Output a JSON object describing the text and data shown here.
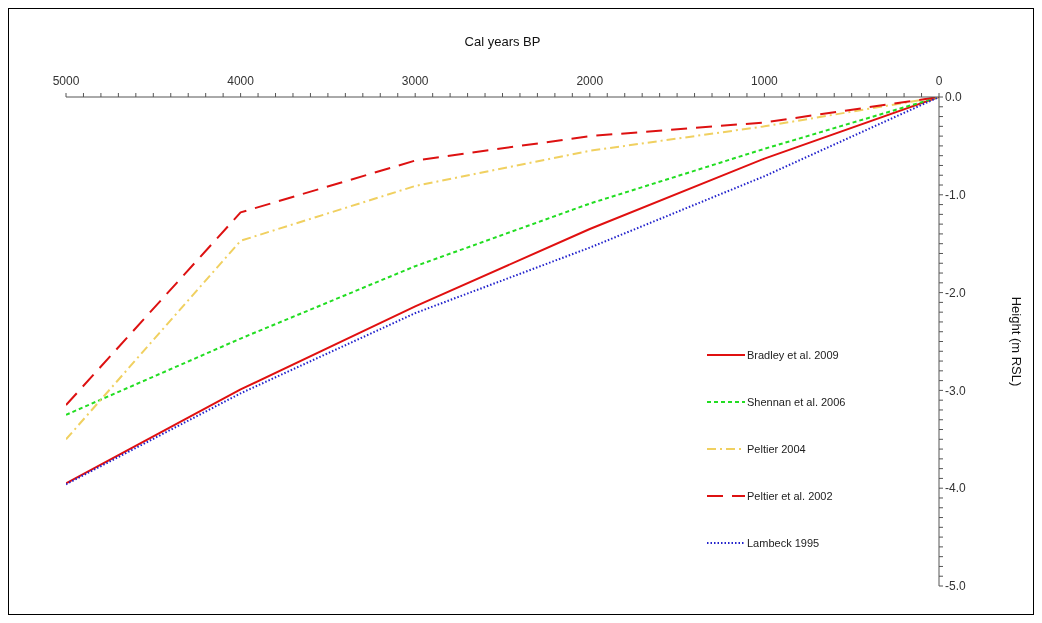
{
  "chart_data": {
    "type": "line",
    "xlabel": "Cal years BP",
    "ylabel": "Height (m RSL)",
    "x": [
      5000,
      4000,
      3000,
      2000,
      1000,
      0
    ],
    "series": [
      {
        "name": "Bradley et al. 2009",
        "color": "#e01010",
        "line_style": "solid",
        "values": [
          -3.95,
          -2.99,
          -2.14,
          -1.35,
          -0.63,
          0
        ]
      },
      {
        "name": "Shennan et al. 2006",
        "color": "#22dd22",
        "line_style": "dashed",
        "values": [
          -3.25,
          -2.47,
          -1.73,
          -1.09,
          -0.53,
          0
        ]
      },
      {
        "name": "Peltier 2004",
        "color": "#f0d060",
        "line_style": "dashdot",
        "values": [
          -3.5,
          -1.47,
          -0.91,
          -0.55,
          -0.3,
          0
        ]
      },
      {
        "name": "Peltier et al. 2002",
        "color": "#dd1111",
        "line_style": "longdash",
        "values": [
          -3.15,
          -1.18,
          -0.65,
          -0.4,
          -0.26,
          0
        ]
      },
      {
        "name": "Lambeck 1995",
        "color": "#2222cc",
        "line_style": "dotted",
        "values": [
          -3.96,
          -3.03,
          -2.21,
          -1.54,
          -0.81,
          0
        ]
      }
    ],
    "xlim": [
      5000,
      0
    ],
    "xticks": [
      5000,
      {
        "value": 4900,
        "label": null
      },
      {
        "value": 4800,
        "label": null
      },
      {
        "value": 4700,
        "label": null
      },
      {
        "value": 4600,
        "label": null
      },
      {
        "value": 4500,
        "label": null
      },
      {
        "value": 4400,
        "label": null
      },
      {
        "value": 4300,
        "label": null
      },
      {
        "value": 4200,
        "label": null
      },
      {
        "value": 4100,
        "label": null
      },
      4000,
      {
        "value": 3900,
        "label": null
      },
      {
        "value": 3800,
        "label": null
      },
      {
        "value": 3700,
        "label": null
      },
      {
        "value": 3600,
        "label": null
      },
      {
        "value": 3500,
        "label": null
      },
      {
        "value": 3400,
        "label": null
      },
      {
        "value": 3300,
        "label": null
      },
      {
        "value": 3200,
        "label": null
      },
      {
        "value": 3100,
        "label": null
      },
      3000,
      {
        "value": 2900,
        "label": null
      },
      {
        "value": 2800,
        "label": null
      },
      {
        "value": 2700,
        "label": null
      },
      {
        "value": 2600,
        "label": null
      },
      {
        "value": 2500,
        "label": null
      },
      {
        "value": 2400,
        "label": null
      },
      {
        "value": 2300,
        "label": null
      },
      {
        "value": 2200,
        "label": null
      },
      {
        "value": 2100,
        "label": null
      },
      2000,
      {
        "value": 1900,
        "label": null
      },
      {
        "value": 1800,
        "label": null
      },
      {
        "value": 1700,
        "label": null
      },
      {
        "value": 1600,
        "label": null
      },
      {
        "value": 1500,
        "label": null
      },
      {
        "value": 1400,
        "label": null
      },
      {
        "value": 1300,
        "label": null
      },
      {
        "value": 1200,
        "label": null
      },
      {
        "value": 1100,
        "label": null
      },
      1000,
      {
        "value": 900,
        "label": null
      },
      {
        "value": 800,
        "label": null
      },
      {
        "value": 700,
        "label": null
      },
      {
        "value": 600,
        "label": null
      },
      {
        "value": 500,
        "label": null
      },
      {
        "value": 400,
        "label": null
      },
      {
        "value": 300,
        "label": null
      },
      {
        "value": 200,
        "label": null
      },
      {
        "value": 100,
        "label": null
      },
      0
    ],
    "ylim": [
      -5,
      0
    ],
    "yticks": [
      {
        "value": 0,
        "label": "0.0"
      },
      {
        "value": -0.1,
        "label": null
      },
      {
        "value": -0.2,
        "label": null
      },
      {
        "value": -0.3,
        "label": null
      },
      {
        "value": -0.4,
        "label": null
      },
      {
        "value": -0.5,
        "label": null
      },
      {
        "value": -0.6,
        "label": null
      },
      {
        "value": -0.7,
        "label": null
      },
      {
        "value": -0.8,
        "label": null
      },
      {
        "value": -0.9,
        "label": null
      },
      {
        "value": -1,
        "label": "-1.0"
      },
      {
        "value": -1.1,
        "label": null
      },
      {
        "value": -1.2,
        "label": null
      },
      {
        "value": -1.3,
        "label": null
      },
      {
        "value": -1.4,
        "label": null
      },
      {
        "value": -1.5,
        "label": null
      },
      {
        "value": -1.6,
        "label": null
      },
      {
        "value": -1.7,
        "label": null
      },
      {
        "value": -1.8,
        "label": null
      },
      {
        "value": -1.9,
        "label": null
      },
      {
        "value": -2,
        "label": "-2.0"
      },
      {
        "value": -2.1,
        "label": null
      },
      {
        "value": -2.2,
        "label": null
      },
      {
        "value": -2.3,
        "label": null
      },
      {
        "value": -2.4,
        "label": null
      },
      {
        "value": -2.5,
        "label": null
      },
      {
        "value": -2.6,
        "label": null
      },
      {
        "value": -2.7,
        "label": null
      },
      {
        "value": -2.8,
        "label": null
      },
      {
        "value": -2.9,
        "label": null
      },
      {
        "value": -3,
        "label": "-3.0"
      },
      {
        "value": -3.1,
        "label": null
      },
      {
        "value": -3.2,
        "label": null
      },
      {
        "value": -3.3,
        "label": null
      },
      {
        "value": -3.4,
        "label": null
      },
      {
        "value": -3.5,
        "label": null
      },
      {
        "value": -3.6,
        "label": null
      },
      {
        "value": -3.7,
        "label": null
      },
      {
        "value": -3.8,
        "label": null
      },
      {
        "value": -3.9,
        "label": null
      },
      {
        "value": -4,
        "label": "-4.0"
      },
      {
        "value": -4.1,
        "label": null
      },
      {
        "value": -4.2,
        "label": null
      },
      {
        "value": -4.3,
        "label": null
      },
      {
        "value": -4.4,
        "label": null
      },
      {
        "value": -4.5,
        "label": null
      },
      {
        "value": -4.6,
        "label": null
      },
      {
        "value": -4.7,
        "label": null
      },
      {
        "value": -4.8,
        "label": null
      },
      {
        "value": -4.9,
        "label": null
      },
      {
        "value": -5,
        "label": "-5.0"
      }
    ],
    "grid": false,
    "legend": "right",
    "marker": "none"
  }
}
